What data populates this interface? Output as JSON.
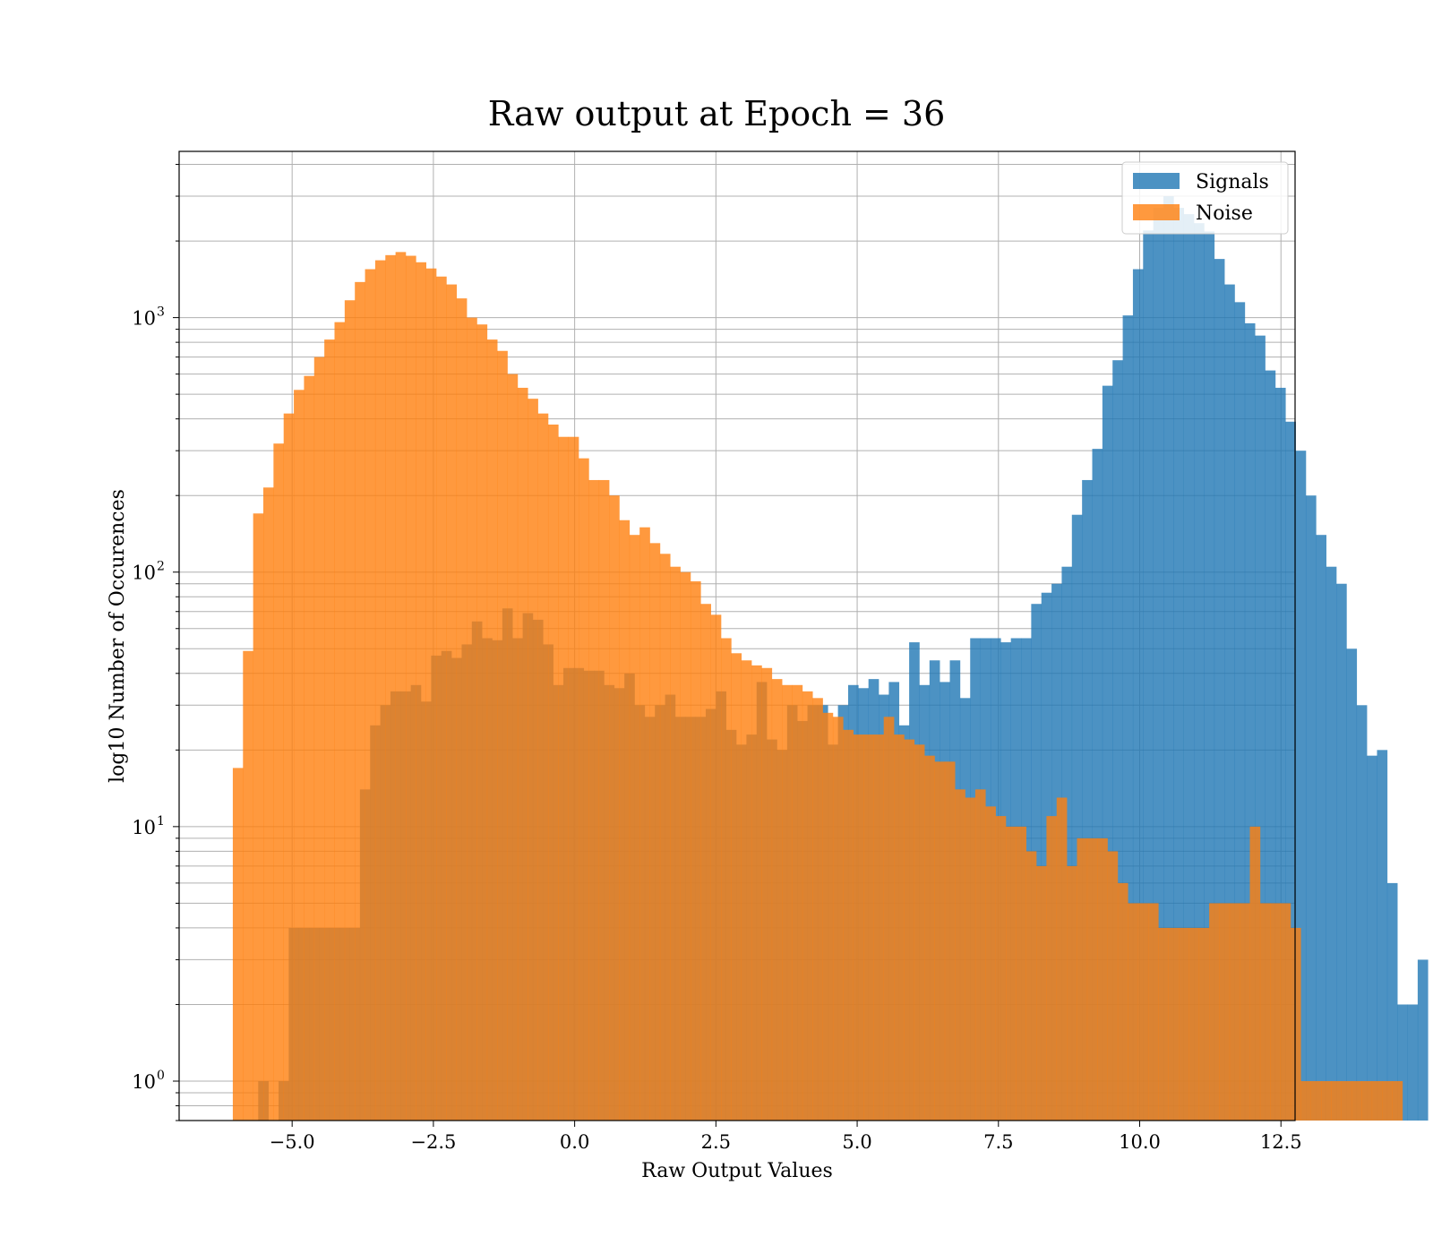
{
  "chart_data": {
    "type": "histogram",
    "title": "Raw output at Epoch = 36",
    "xlabel": "Raw Output Values",
    "ylabel": "log10 Number of Occurences",
    "xlim": [
      -7.0,
      12.75
    ],
    "ylim": [
      0.7,
      4500
    ],
    "yscale": "log",
    "grid": true,
    "legend_position": "top-right",
    "x_ticks": [
      -5.0,
      -2.5,
      0.0,
      2.5,
      5.0,
      7.5,
      10.0,
      12.5
    ],
    "x_tick_labels": [
      "−5.0",
      "−2.5",
      "0.0",
      "2.5",
      "5.0",
      "7.5",
      "10.0",
      "12.5"
    ],
    "y_ticks": [
      1,
      10,
      100,
      1000
    ],
    "y_tick_labels": [
      {
        "base": "10",
        "exp": "0"
      },
      {
        "base": "10",
        "exp": "1"
      },
      {
        "base": "10",
        "exp": "2"
      },
      {
        "base": "10",
        "exp": "3"
      }
    ],
    "series": [
      {
        "name": "Signals",
        "color": "#1f77b4",
        "opacity": 0.8,
        "bin_start": -5.6,
        "bin_width": 0.18,
        "counts": [
          1,
          0,
          1,
          4,
          4,
          4,
          4,
          4,
          4,
          4,
          14,
          25,
          30,
          34,
          34,
          36,
          31,
          47,
          49,
          46,
          52,
          64,
          55,
          54,
          72,
          55,
          69,
          65,
          52,
          36,
          42,
          42,
          41,
          41,
          36,
          35,
          40,
          30,
          27,
          30,
          33,
          27,
          27,
          27,
          29,
          34,
          24,
          21,
          23,
          37,
          22,
          20,
          30,
          26,
          30,
          30,
          21,
          30,
          36,
          35,
          38,
          33,
          37,
          25,
          53,
          36,
          45,
          37,
          45,
          32,
          55,
          55,
          55,
          53,
          55,
          55,
          75,
          83,
          90,
          105,
          168,
          230,
          305,
          540,
          680,
          1020,
          1550,
          2200,
          2700,
          3000,
          2700,
          2550,
          2350,
          2180,
          1700,
          1350,
          1150,
          950,
          850,
          620,
          530,
          390,
          300,
          200,
          140,
          105,
          90,
          50,
          30,
          19,
          20,
          6,
          2,
          2,
          3
        ]
      },
      {
        "name": "Noise",
        "color": "#ff7f0e",
        "opacity": 0.8,
        "bin_start": -6.05,
        "bin_width": 0.18,
        "counts": [
          17,
          49,
          170,
          215,
          320,
          420,
          520,
          590,
          700,
          820,
          960,
          1170,
          1380,
          1550,
          1680,
          1760,
          1810,
          1750,
          1650,
          1560,
          1450,
          1350,
          1190,
          1000,
          940,
          820,
          740,
          600,
          530,
          480,
          420,
          380,
          340,
          340,
          280,
          230,
          230,
          200,
          160,
          140,
          150,
          130,
          118,
          105,
          100,
          92,
          75,
          68,
          55,
          48,
          45,
          43,
          42,
          38,
          36,
          36,
          34,
          32,
          28,
          27,
          24,
          23,
          23,
          23,
          27,
          23,
          22,
          21,
          19,
          18,
          18,
          14,
          13,
          14,
          12,
          11,
          10,
          10,
          8,
          7,
          11,
          13,
          7,
          9,
          9,
          9,
          8,
          6,
          5,
          5,
          5,
          4,
          4,
          4,
          4,
          4,
          5,
          5,
          5,
          5,
          10,
          5,
          5,
          5,
          4,
          1,
          1,
          1,
          1,
          1,
          1,
          1,
          1,
          1,
          1
        ]
      }
    ]
  },
  "legend": {
    "items": [
      {
        "label": "Signals",
        "color": "#1f77b4"
      },
      {
        "label": "Noise",
        "color": "#ff7f0e"
      }
    ]
  }
}
